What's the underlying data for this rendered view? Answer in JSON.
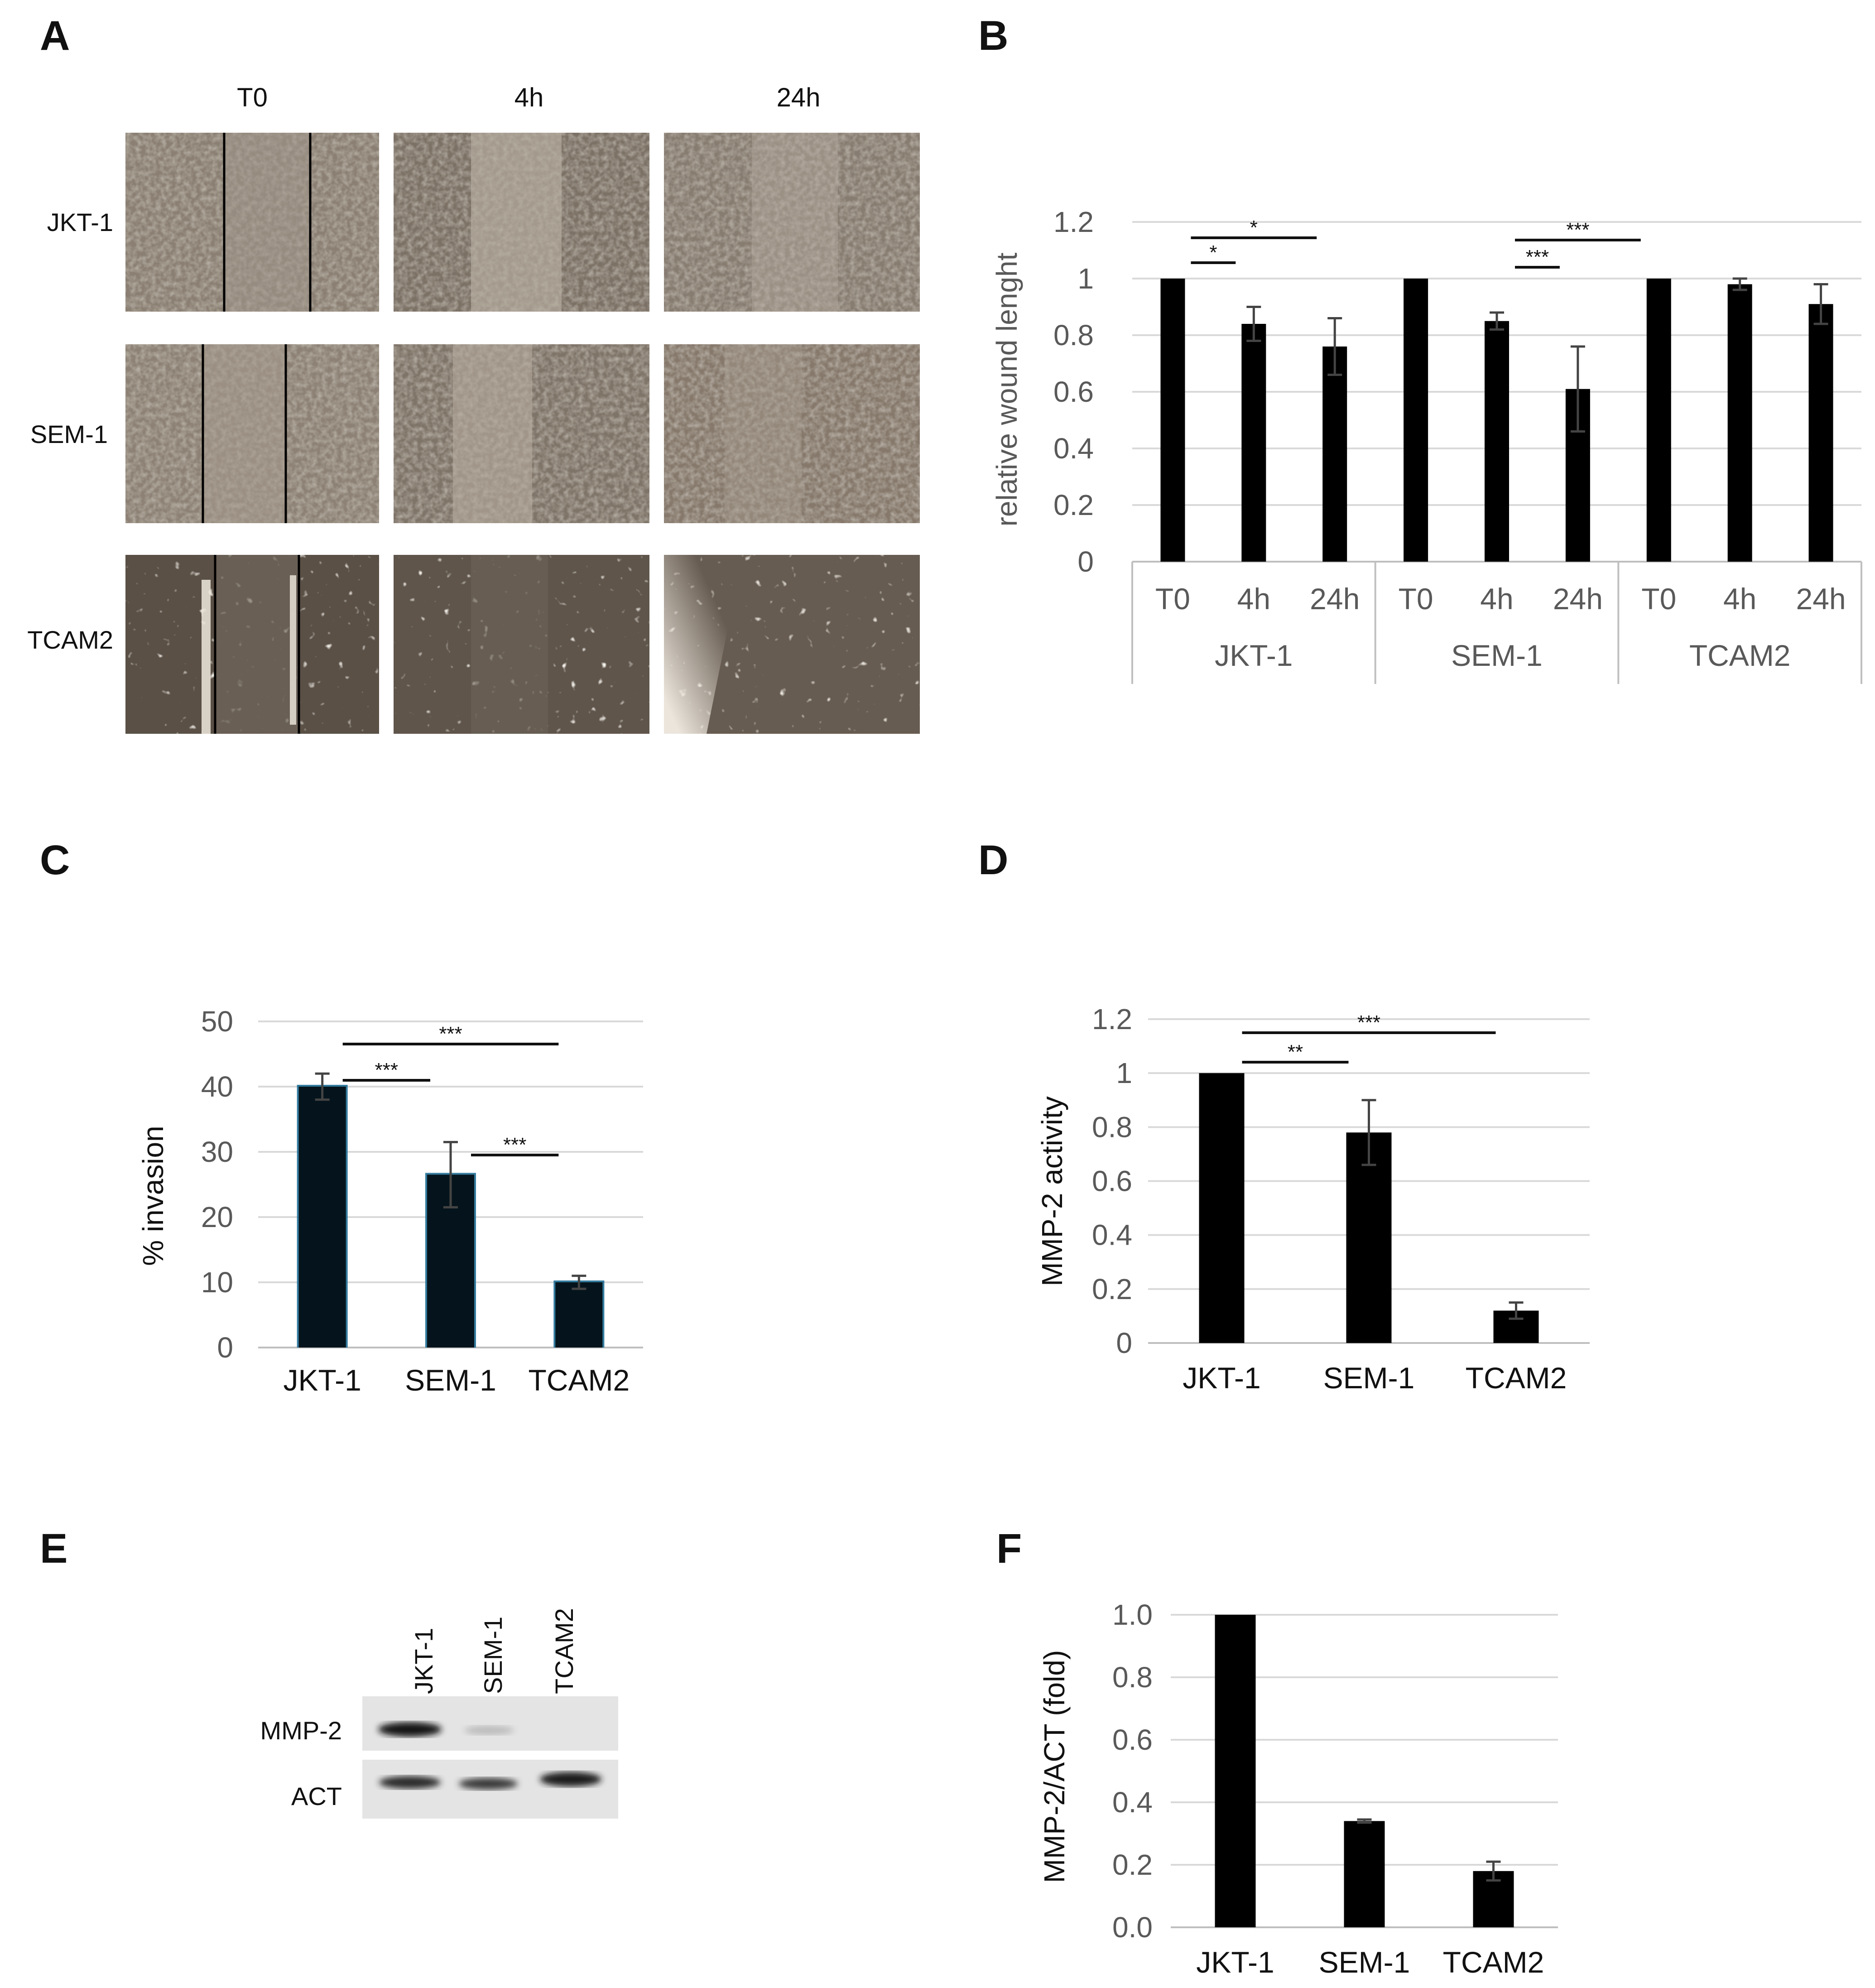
{
  "panel_labels": [
    "A",
    "B",
    "C",
    "D",
    "E",
    "F"
  ],
  "panel_a": {
    "columns": [
      "T0",
      "4h",
      "24h"
    ],
    "rows": [
      "JKT-1",
      "SEM-1",
      "TCAM2"
    ]
  },
  "panel_e": {
    "lanes": [
      "JKT-1",
      "SEM-1",
      "TCAM2"
    ],
    "rows": [
      "MMP-2",
      "ACT"
    ]
  },
  "chart_data": [
    {
      "panel": "B",
      "type": "bar",
      "ylabel": "relative wound lenght",
      "ylim": [
        0,
        1.2
      ],
      "yticks": [
        "0",
        "0.2",
        "0.4",
        "0.6",
        "0.8",
        "1",
        "1.2"
      ],
      "groups": [
        "JKT-1",
        "SEM-1",
        "TCAM2"
      ],
      "categories": [
        "T0",
        "4h",
        "24h",
        "T0",
        "4h",
        "24h",
        "T0",
        "4h",
        "24h"
      ],
      "values": [
        1.0,
        0.84,
        0.76,
        1.0,
        0.85,
        0.61,
        1.0,
        0.98,
        0.91
      ],
      "errors": [
        0,
        0.06,
        0.1,
        0,
        0.03,
        0.15,
        0,
        0.02,
        0.07
      ],
      "grid": true,
      "bar_color": "#000000",
      "annotations": [
        {
          "from": 0,
          "to": 1,
          "label": "*"
        },
        {
          "from": 0,
          "to": 2,
          "label": "*"
        },
        {
          "from": 4,
          "to": 5,
          "label": "***"
        },
        {
          "from": 4,
          "to": 6,
          "label": "***"
        }
      ]
    },
    {
      "panel": "C",
      "type": "bar",
      "ylabel": "% invasion",
      "ylim": [
        0,
        50
      ],
      "yticks": [
        "0",
        "10",
        "20",
        "30",
        "40",
        "50"
      ],
      "categories": [
        "JKT-1",
        "SEM-1",
        "TCAM2"
      ],
      "values": [
        40,
        26.5,
        10
      ],
      "errors": [
        2,
        5,
        1
      ],
      "grid": true,
      "bar_color": "#05141c",
      "glow_color": "#1f6e95",
      "annotations": [
        {
          "from": 0,
          "to": 1,
          "label": "***"
        },
        {
          "from": 0,
          "to": 2,
          "label": "***"
        },
        {
          "from": 1,
          "to": 2,
          "label": "***"
        }
      ]
    },
    {
      "panel": "D",
      "type": "bar",
      "ylabel": "MMP-2 activity",
      "ylim": [
        0,
        1.2
      ],
      "yticks": [
        "0",
        "0.2",
        "0.4",
        "0.6",
        "0.8",
        "1",
        "1.2"
      ],
      "categories": [
        "JKT-1",
        "SEM-1",
        "TCAM2"
      ],
      "values": [
        1.0,
        0.78,
        0.12
      ],
      "errors": [
        0,
        0.12,
        0.03
      ],
      "grid": true,
      "bar_color": "#000000",
      "annotations": [
        {
          "from": 0,
          "to": 1,
          "label": "**"
        },
        {
          "from": 0,
          "to": 2,
          "label": "***"
        }
      ]
    },
    {
      "panel": "F",
      "type": "bar",
      "ylabel": "MMP-2/ACT   (fold)",
      "ylim": [
        0,
        1.0
      ],
      "yticks": [
        "0.0",
        "0.2",
        "0.4",
        "0.6",
        "0.8",
        "1.0"
      ],
      "categories": [
        "JKT-1",
        "SEM-1",
        "TCAM2"
      ],
      "values": [
        1.0,
        0.34,
        0.18
      ],
      "errors": [
        0,
        0.005,
        0.03
      ],
      "grid": true,
      "bar_color": "#000000",
      "annotations": []
    }
  ]
}
